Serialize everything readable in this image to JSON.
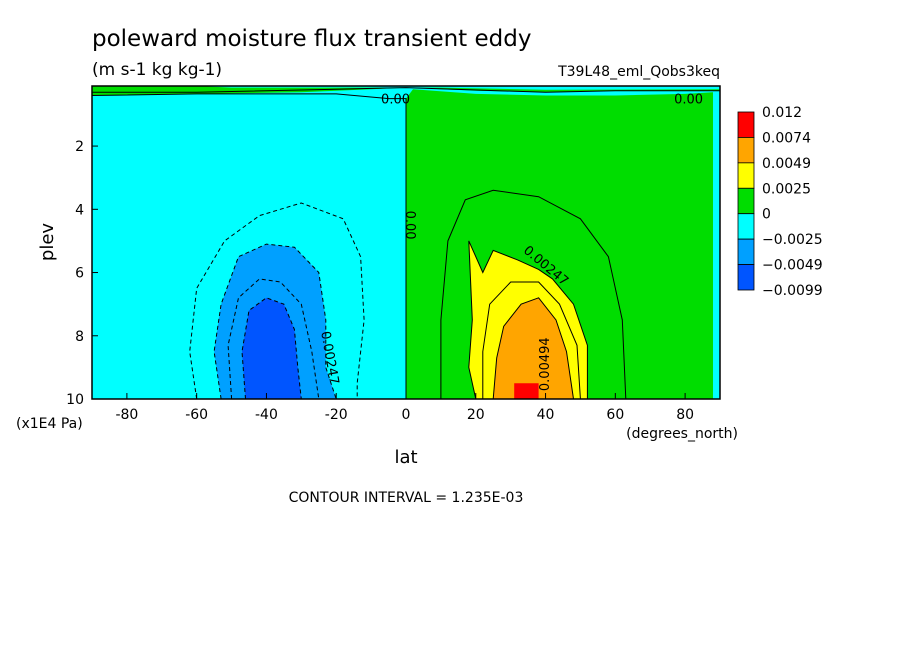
{
  "chart_data": {
    "type": "heatmap",
    "title": "poleward moisture flux transient eddy",
    "subtitle": "(m s-1 kg kg-1)",
    "dataset": "T39L48_eml_Qobs3keq",
    "xlabel": "lat",
    "xunits": "(degrees_north)",
    "ylabel": "plev",
    "yunits": "(x1E4 Pa)",
    "xlim": [
      -90,
      90
    ],
    "ylim": [
      10,
      0.1
    ],
    "xticks": [
      -80,
      -60,
      -40,
      -20,
      0,
      20,
      40,
      60,
      80
    ],
    "yticks": [
      2,
      4,
      6,
      8,
      10
    ],
    "footer": "CONTOUR INTERVAL = 1.235E-03",
    "colorbar": {
      "levels": [
        "0.012",
        "0.0074",
        "0.0049",
        "0.0025",
        "0",
        "−0.0025",
        "−0.0049",
        "−0.0099"
      ],
      "colors": [
        "#ff0000",
        "#ffa500",
        "#ffff00",
        "#00dd00",
        "#00ffff",
        "#00a0ff",
        "#0055ff"
      ]
    },
    "contour_labels": [
      {
        "text": "0.00",
        "lat": -3,
        "plev": 0.55,
        "rotate": 0
      },
      {
        "text": "0.00",
        "lat": 81,
        "plev": 0.55,
        "rotate": 0
      },
      {
        "text": "0.00",
        "lat": 1,
        "plev": 4.5,
        "rotate": 90
      },
      {
        "text": "0.00247",
        "lat": 40,
        "plev": 5.8,
        "rotate": 40
      },
      {
        "text": "0.00247",
        "lat": -22,
        "plev": 8.7,
        "rotate": 80
      },
      {
        "text": "0.00494",
        "lat": 40,
        "plev": 8.9,
        "rotate": -90
      }
    ],
    "regions": [
      {
        "name": "positive-0-0.0025",
        "color": "#00dd00",
        "points": [
          [
            0,
            10
          ],
          [
            0,
            0.5
          ],
          [
            2,
            0.2
          ],
          [
            20,
            0.35
          ],
          [
            40,
            0.4
          ],
          [
            60,
            0.4
          ],
          [
            80,
            0.35
          ],
          [
            88,
            0.3
          ],
          [
            88,
            10
          ]
        ]
      },
      {
        "name": "positive-top-band",
        "color": "#00dd00",
        "points": [
          [
            -90,
            0.1
          ],
          [
            90,
            0.1
          ],
          [
            90,
            0.25
          ],
          [
            60,
            0.25
          ],
          [
            40,
            0.3
          ],
          [
            20,
            0.25
          ],
          [
            0,
            0.15
          ],
          [
            -10,
            0.2
          ],
          [
            -30,
            0.3
          ],
          [
            -60,
            0.35
          ],
          [
            -90,
            0.4
          ]
        ]
      },
      {
        "name": "negative-top-strip",
        "color": "#00ffff",
        "points": [
          [
            -60,
            0.1
          ],
          [
            90,
            0.1
          ],
          [
            90,
            0.2
          ],
          [
            40,
            0.22
          ],
          [
            10,
            0.15
          ],
          [
            -20,
            0.15
          ],
          [
            -50,
            0.15
          ]
        ]
      },
      {
        "name": "negative-0.0025-0.0049",
        "color": "#00a0ff",
        "points": [
          [
            -53,
            10
          ],
          [
            -55,
            8.5
          ],
          [
            -53,
            7
          ],
          [
            -48,
            5.5
          ],
          [
            -40,
            5.1
          ],
          [
            -32,
            5.2
          ],
          [
            -25,
            6
          ],
          [
            -23,
            7.5
          ],
          [
            -23,
            9
          ],
          [
            -20,
            10
          ]
        ]
      },
      {
        "name": "negative-0.0049-0.0099",
        "color": "#0055ff",
        "points": [
          [
            -46,
            10
          ],
          [
            -47,
            8.5
          ],
          [
            -45,
            7.2
          ],
          [
            -40,
            6.8
          ],
          [
            -35,
            7
          ],
          [
            -32,
            7.8
          ],
          [
            -31,
            9
          ],
          [
            -30,
            10
          ]
        ]
      },
      {
        "name": "positive-0.0025-0.0049",
        "color": "#ffff00",
        "points": [
          [
            20,
            10
          ],
          [
            18,
            9
          ],
          [
            19,
            7.5
          ],
          [
            18,
            5
          ],
          [
            22,
            6
          ],
          [
            25,
            5.3
          ],
          [
            32,
            5.6
          ],
          [
            38,
            5.9
          ],
          [
            42,
            6.2
          ],
          [
            48,
            7
          ],
          [
            52,
            8.3
          ],
          [
            52,
            10
          ]
        ]
      },
      {
        "name": "positive-0.0049-0.0074",
        "color": "#ffa500",
        "points": [
          [
            25,
            10
          ],
          [
            26,
            8.7
          ],
          [
            28,
            7.7
          ],
          [
            33,
            7
          ],
          [
            38,
            6.8
          ],
          [
            43,
            7.5
          ],
          [
            46,
            8.5
          ],
          [
            48,
            10
          ]
        ]
      },
      {
        "name": "positive-0.0074-0.012",
        "color": "#ff0000",
        "points": [
          [
            31,
            10
          ],
          [
            31,
            9.5
          ],
          [
            38,
            9.5
          ],
          [
            38,
            10
          ]
        ]
      }
    ],
    "contours": [
      {
        "name": "zero-line",
        "dash": false,
        "points": [
          [
            0,
            10
          ],
          [
            0,
            0.5
          ],
          [
            -5,
            0.5
          ],
          [
            -20,
            0.35
          ],
          [
            -60,
            0.35
          ],
          [
            -90,
            0.4
          ]
        ]
      },
      {
        "name": "top-zero-line",
        "dash": false,
        "points": [
          [
            -90,
            0.3
          ],
          [
            -60,
            0.3
          ],
          [
            -20,
            0.2
          ],
          [
            0,
            0.15
          ],
          [
            40,
            0.3
          ],
          [
            60,
            0.25
          ],
          [
            90,
            0.25
          ]
        ]
      },
      {
        "name": "neg-outer",
        "dash": true,
        "points": [
          [
            -60,
            10
          ],
          [
            -62,
            8.5
          ],
          [
            -60,
            6.5
          ],
          [
            -52,
            5
          ],
          [
            -42,
            4.2
          ],
          [
            -30,
            3.8
          ],
          [
            -18,
            4.3
          ],
          [
            -13,
            5.5
          ],
          [
            -12,
            7.5
          ],
          [
            -14,
            9.5
          ],
          [
            -14,
            10
          ]
        ]
      },
      {
        "name": "neg-inner",
        "dash": true,
        "points": [
          [
            -53,
            10
          ],
          [
            -55,
            8.5
          ],
          [
            -53,
            7
          ],
          [
            -48,
            5.5
          ],
          [
            -40,
            5.1
          ],
          [
            -32,
            5.2
          ],
          [
            -25,
            6
          ],
          [
            -23,
            7.5
          ],
          [
            -23,
            9
          ],
          [
            -20,
            10
          ]
        ]
      },
      {
        "name": "neg-mid",
        "dash": true,
        "points": [
          [
            -50,
            10
          ],
          [
            -51,
            8.3
          ],
          [
            -48,
            6.8
          ],
          [
            -42,
            6.2
          ],
          [
            -36,
            6.3
          ],
          [
            -30,
            7
          ],
          [
            -27,
            8.5
          ],
          [
            -25,
            10
          ]
        ]
      },
      {
        "name": "neg-core",
        "dash": true,
        "points": [
          [
            -46,
            10
          ],
          [
            -47,
            8.5
          ],
          [
            -45,
            7.2
          ],
          [
            -40,
            6.8
          ],
          [
            -35,
            7
          ],
          [
            -32,
            7.8
          ],
          [
            -31,
            9
          ],
          [
            -30,
            10
          ]
        ]
      },
      {
        "name": "pos-outer",
        "dash": false,
        "points": [
          [
            10,
            10
          ],
          [
            10,
            7.5
          ],
          [
            12,
            5
          ],
          [
            17,
            3.7
          ],
          [
            25,
            3.4
          ],
          [
            38,
            3.6
          ],
          [
            50,
            4.3
          ],
          [
            58,
            5.5
          ],
          [
            62,
            7.5
          ],
          [
            63,
            10
          ]
        ]
      },
      {
        "name": "pos-inner",
        "dash": false,
        "points": [
          [
            20,
            10
          ],
          [
            18,
            9
          ],
          [
            19,
            7.5
          ],
          [
            18,
            5
          ],
          [
            22,
            6
          ],
          [
            25,
            5.3
          ],
          [
            32,
            5.6
          ],
          [
            38,
            5.9
          ],
          [
            42,
            6.2
          ],
          [
            48,
            7
          ],
          [
            52,
            8.3
          ],
          [
            52,
            10
          ]
        ]
      },
      {
        "name": "pos-mid",
        "dash": false,
        "points": [
          [
            22,
            10
          ],
          [
            22,
            8.5
          ],
          [
            24,
            7
          ],
          [
            30,
            6.3
          ],
          [
            38,
            6.3
          ],
          [
            44,
            7
          ],
          [
            49,
            8.3
          ],
          [
            50,
            10
          ]
        ]
      },
      {
        "name": "pos-core",
        "dash": false,
        "points": [
          [
            25,
            10
          ],
          [
            26,
            8.7
          ],
          [
            28,
            7.7
          ],
          [
            33,
            7
          ],
          [
            38,
            6.8
          ],
          [
            43,
            7.5
          ],
          [
            46,
            8.5
          ],
          [
            48,
            10
          ]
        ]
      }
    ]
  }
}
